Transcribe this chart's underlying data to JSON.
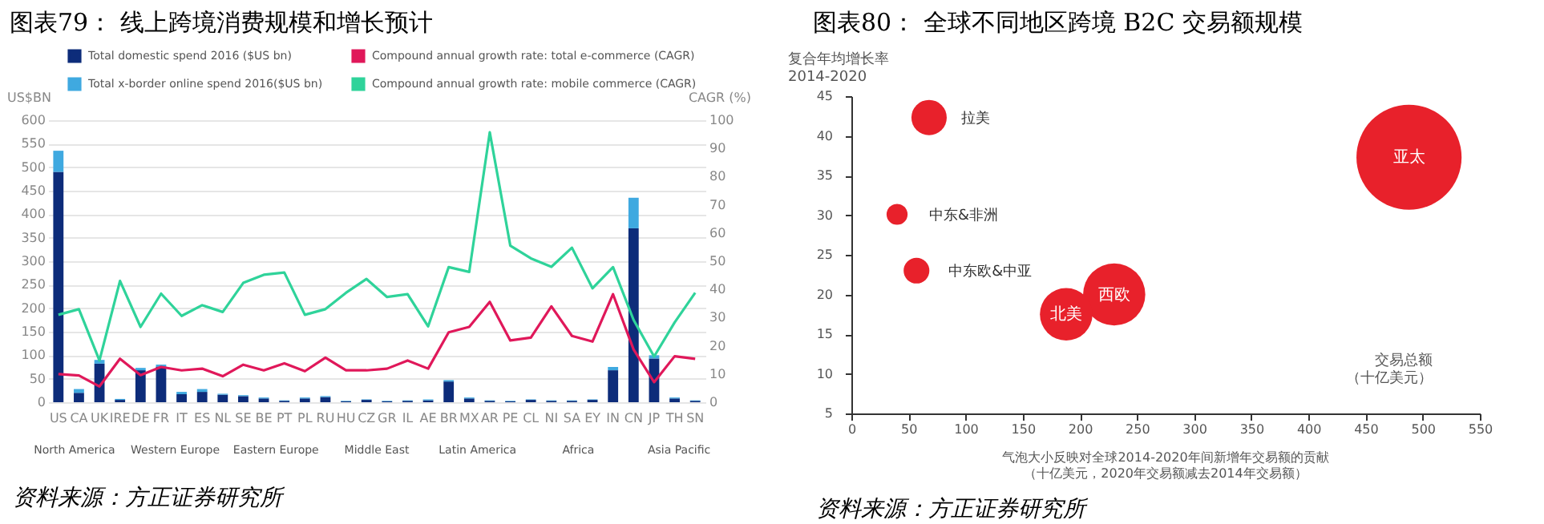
{
  "chart_data": [
    {
      "type": "bar",
      "title": "图表79：    线上跨境消费规模和增长预计",
      "ylabel": "US$BN",
      "y2label": "CAGR (%)",
      "stacked": true,
      "legend": "top",
      "grid": "y",
      "marker": "none",
      "line_style": "solid",
      "categories": [
        "US",
        "CA",
        "UK",
        "IRE",
        "DE",
        "FR",
        "IT",
        "ES",
        "NL",
        "SE",
        "BE",
        "PT",
        "PL",
        "RU",
        "HU",
        "CZ",
        "GR",
        "IL",
        "AE",
        "BR",
        "MX",
        "AR",
        "PE",
        "CL",
        "NI",
        "SA",
        "EY",
        "IN",
        "CN",
        "JP",
        "TH",
        "SN"
      ],
      "ylim": [
        0,
        600
      ],
      "yticks": [
        0,
        50,
        100,
        150,
        200,
        250,
        300,
        350,
        400,
        450,
        500,
        550,
        600
      ],
      "y2lim": [
        0,
        100
      ],
      "y2ticks": [
        0,
        10,
        20,
        30,
        40,
        50,
        60,
        70,
        80,
        90,
        100
      ],
      "series": [
        {
          "name": "Total domestic  spend 2016 ($US bn)",
          "type": "bar",
          "color": "#0d2c7a",
          "values": [
            490,
            20,
            82,
            5,
            68,
            76,
            17,
            22,
            16,
            13,
            8,
            3,
            8,
            11,
            2,
            5,
            2,
            3,
            4,
            44,
            8,
            3,
            2,
            5,
            3,
            3,
            5,
            68,
            370,
            93,
            8,
            3
          ]
        },
        {
          "name": "Total x-border online spend 2016($US bn)",
          "type": "bar",
          "color": "#3fa9e0",
          "values": [
            45,
            8,
            8,
            2,
            5,
            4,
            5,
            6,
            2,
            2,
            2,
            1,
            2,
            2,
            1,
            1,
            1,
            1,
            2,
            3,
            2,
            1,
            1,
            1,
            1,
            1,
            1,
            7,
            65,
            7,
            2,
            1
          ]
        },
        {
          "name": "Compound annual growth rate: total e-commerce (CAGR)",
          "type": "line",
          "axis": "y2",
          "color": "#e0185a",
          "values": [
            10,
            9.5,
            5.6,
            15.4,
            9.6,
            12.5,
            11.3,
            11.9,
            9.2,
            13.3,
            11.3,
            13.8,
            11,
            15.8,
            11.3,
            11.3,
            11.9,
            14.8,
            11.9,
            24.8,
            26.7,
            35.6,
            21.9,
            22.9,
            34,
            23.5,
            21.5,
            38.3,
            18.7,
            7.1,
            16.3,
            15.4
          ]
        },
        {
          "name": "Compound annual growth rate: mobile commerce (CAGR)",
          "type": "line",
          "axis": "y2",
          "color": "#2fd39a",
          "values": [
            31,
            33,
            14.8,
            43,
            26.7,
            38.5,
            30.6,
            34.4,
            32,
            42.3,
            45.2,
            46,
            31,
            33,
            38.8,
            43.7,
            37.3,
            38.3,
            26.9,
            47.9,
            46.2,
            95.7,
            55.5,
            51,
            48,
            54.8,
            40.4,
            47.9,
            29.2,
            16.2,
            28.3,
            38.8
          ]
        }
      ],
      "annotations": [
        "North America",
        "Western Europe",
        "Eastern Europe",
        "Middle East",
        "Latin America",
        "Africa",
        "Asia Pacific",
        "资料来源：方正证券研究所"
      ]
    },
    {
      "type": "bubble",
      "title": "图表80：    全球不同地区跨境 B2C 交易额规模",
      "ylabel": "复合年均增长率\n2014-2020",
      "xlabel": "交易总额（十亿美元）",
      "xlim": [
        0,
        550
      ],
      "xticks": [
        0,
        50,
        100,
        150,
        200,
        250,
        300,
        350,
        400,
        450,
        500,
        550
      ],
      "ylim": [
        5,
        45
      ],
      "yticks": [
        5,
        10,
        15,
        20,
        25,
        30,
        35,
        40,
        45
      ],
      "series": [
        {
          "name": "拉美",
          "color": "#e8212b",
          "x": [
            68
          ],
          "values": [
            42.3
          ],
          "sizes": [
            0.113
          ]
        },
        {
          "name": "中东&非洲",
          "color": "#e8212b",
          "x": [
            40
          ],
          "values": [
            30.1
          ],
          "sizes": [
            0.04
          ]
        },
        {
          "name": "中东欧&中亚",
          "color": "#e8212b",
          "x": [
            57
          ],
          "values": [
            23
          ],
          "sizes": [
            0.06
          ]
        },
        {
          "name": "西欧",
          "color": "#e8212b",
          "x": [
            230
          ],
          "values": [
            20
          ],
          "sizes": [
            0.35
          ]
        },
        {
          "name": "北美",
          "color": "#e8212b",
          "x": [
            188
          ],
          "values": [
            17.5
          ],
          "sizes": [
            0.25
          ]
        },
        {
          "name": "亚太",
          "color": "#e8212b",
          "x": [
            488
          ],
          "values": [
            37.3
          ],
          "sizes": [
            1
          ]
        }
      ],
      "annotations": [
        "气泡大小反映对全球2014-2020年间新增年交易额的贡献（十亿美元，2020年交易额减去2014年交易额）",
        "资料来源：方正证券研究所"
      ]
    }
  ]
}
